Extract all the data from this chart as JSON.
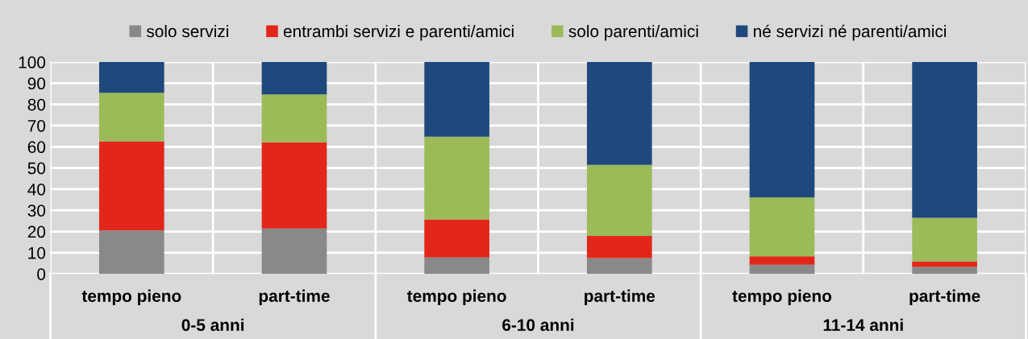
{
  "chart_data": {
    "type": "bar",
    "stacked": true,
    "categories": [
      "tempo pieno",
      "part-time",
      "tempo pieno",
      "part-time",
      "tempo pieno",
      "part-time"
    ],
    "series": [
      {
        "name": "solo servizi",
        "color": "#898989",
        "values": [
          20.5,
          21.4,
          7.8,
          7.5,
          4.3,
          3.3
        ]
      },
      {
        "name": "entrambi servizi e parenti/amici",
        "color": "#e3261a",
        "values": [
          42.1,
          40.7,
          17.9,
          10.4,
          4.0,
          2.6
        ]
      },
      {
        "name": "solo parenti/amici",
        "color": "#9bbb59",
        "values": [
          22.9,
          22.6,
          39.1,
          33.6,
          27.8,
          20.6
        ]
      },
      {
        "name": "né servizi né parenti/amici",
        "color": "#1f497d",
        "values": [
          14.5,
          15.3,
          35.2,
          48.5,
          63.9,
          73.5
        ]
      }
    ],
    "ylim": [
      0,
      100
    ],
    "yticks": [
      0,
      10,
      20,
      30,
      40,
      50,
      60,
      70,
      80,
      90,
      100
    ],
    "grid": true,
    "legend": "top",
    "annotations": [
      "0-5 anni",
      "6-10 anni",
      "11-14 anni"
    ]
  }
}
